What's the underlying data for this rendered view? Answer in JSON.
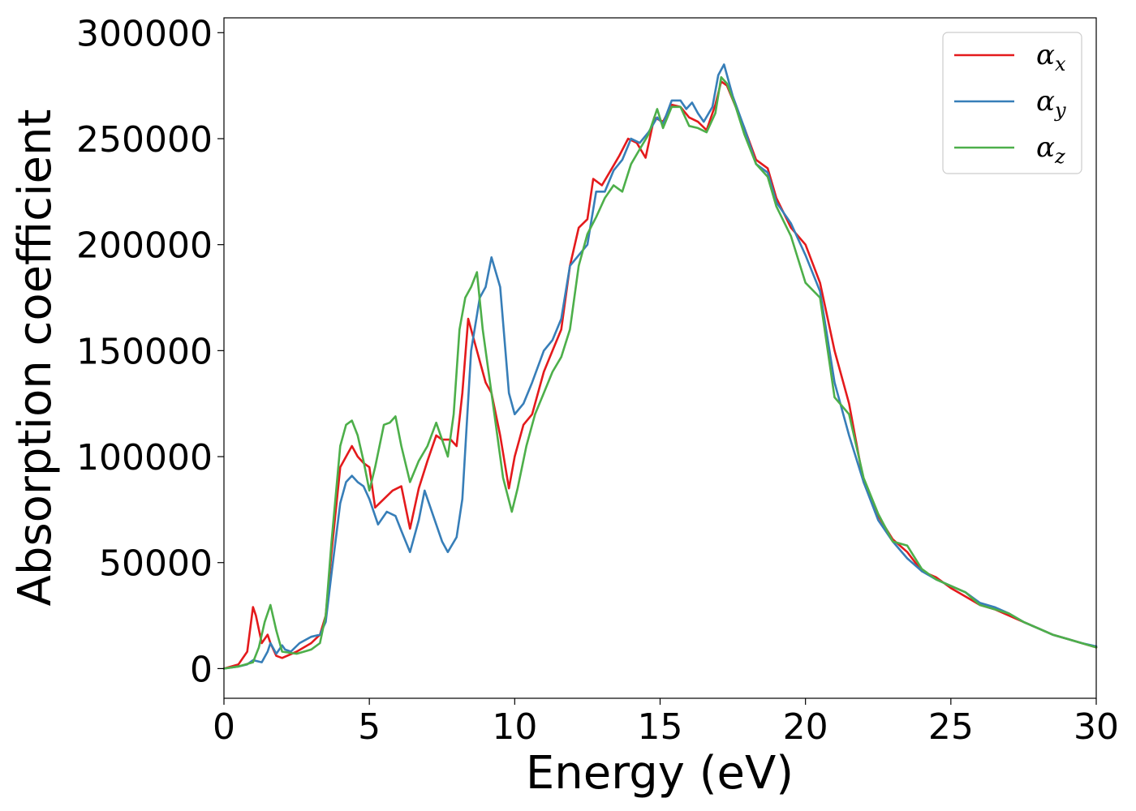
{
  "chart_data": {
    "type": "line",
    "xlabel": "Energy (eV)",
    "ylabel": "Absorption coefficient",
    "xlim": [
      0,
      30
    ],
    "ylim": [
      -14000,
      307000
    ],
    "xticks": [
      0,
      5,
      10,
      15,
      20,
      25,
      30
    ],
    "xtick_labels": [
      "0",
      "5",
      "10",
      "15",
      "20",
      "25",
      "30"
    ],
    "yticks": [
      0,
      50000,
      100000,
      150000,
      200000,
      250000,
      300000
    ],
    "ytick_labels": [
      "0",
      "50000",
      "100000",
      "150000",
      "200000",
      "250000",
      "300000"
    ],
    "grid": false,
    "legend": {
      "position": "top-right"
    },
    "series": [
      {
        "name": "α_x",
        "name_base": "α",
        "name_sub": "x",
        "color": "#e41a1c",
        "x": [
          0,
          0.5,
          0.8,
          1.0,
          1.1,
          1.3,
          1.5,
          1.6,
          1.8,
          2.0,
          2.5,
          3.0,
          3.3,
          3.5,
          3.7,
          4.0,
          4.2,
          4.4,
          4.6,
          4.8,
          5.0,
          5.2,
          5.5,
          5.8,
          6.1,
          6.4,
          6.7,
          7.0,
          7.3,
          7.5,
          7.8,
          8.0,
          8.2,
          8.4,
          8.6,
          8.8,
          9.0,
          9.2,
          9.5,
          9.8,
          10.0,
          10.3,
          10.6,
          11.0,
          11.3,
          11.6,
          11.9,
          12.2,
          12.5,
          12.7,
          13.0,
          13.3,
          13.6,
          13.9,
          14.2,
          14.5,
          14.8,
          15.1,
          15.4,
          15.7,
          16.0,
          16.3,
          16.6,
          16.9,
          17.1,
          17.3,
          17.6,
          17.9,
          18.3,
          18.7,
          19.0,
          19.5,
          20.0,
          20.5,
          21.0,
          21.5,
          22.0,
          22.5,
          23.0,
          23.5,
          24.0,
          24.5,
          25.0,
          25.5,
          26.0,
          26.5,
          27.0,
          27.5,
          28.0,
          28.5,
          29.0,
          29.5,
          30.0
        ],
        "y": [
          0,
          2000,
          8000,
          29000,
          25000,
          12000,
          16000,
          12000,
          6000,
          5000,
          8000,
          12000,
          16000,
          25000,
          55000,
          95000,
          100000,
          105000,
          100000,
          97000,
          95000,
          76000,
          80000,
          84000,
          86000,
          66000,
          85000,
          98000,
          110000,
          108000,
          108000,
          105000,
          130000,
          165000,
          155000,
          145000,
          135000,
          130000,
          110000,
          85000,
          100000,
          115000,
          120000,
          140000,
          150000,
          160000,
          190000,
          208000,
          212000,
          231000,
          228000,
          235000,
          242000,
          250000,
          248000,
          241000,
          260000,
          258000,
          266000,
          265000,
          260000,
          258000,
          254000,
          266000,
          277000,
          275000,
          265000,
          255000,
          240000,
          236000,
          222000,
          208000,
          200000,
          182000,
          150000,
          125000,
          88000,
          72000,
          61000,
          55000,
          46000,
          43000,
          38000,
          34000,
          30000,
          28000,
          25000,
          22000,
          19000,
          16000,
          14000,
          12000,
          10000
        ]
      },
      {
        "name": "α_y",
        "name_base": "α",
        "name_sub": "y",
        "color": "#377eb8",
        "x": [
          0,
          0.5,
          0.8,
          1.0,
          1.3,
          1.5,
          1.6,
          1.8,
          2.0,
          2.1,
          2.3,
          2.6,
          3.0,
          3.3,
          3.5,
          3.7,
          4.0,
          4.2,
          4.4,
          4.6,
          4.8,
          5.0,
          5.3,
          5.6,
          5.9,
          6.1,
          6.4,
          6.7,
          6.9,
          7.2,
          7.5,
          7.7,
          8.0,
          8.2,
          8.5,
          8.8,
          9.0,
          9.2,
          9.5,
          9.8,
          10.0,
          10.3,
          10.6,
          11.0,
          11.3,
          11.6,
          11.9,
          12.2,
          12.5,
          12.8,
          13.1,
          13.4,
          13.7,
          14.0,
          14.3,
          14.6,
          14.9,
          15.1,
          15.4,
          15.7,
          15.9,
          16.1,
          16.3,
          16.5,
          16.8,
          17.0,
          17.2,
          17.5,
          17.9,
          18.3,
          18.7,
          19.0,
          19.5,
          20.0,
          20.5,
          21.0,
          21.5,
          22.0,
          22.5,
          23.0,
          23.5,
          24.0,
          24.5,
          25.0,
          25.5,
          26.0,
          26.5,
          27.0,
          27.5,
          28.0,
          28.5,
          29.0,
          29.5,
          30.0
        ],
        "y": [
          0,
          1000,
          2000,
          4000,
          3000,
          8000,
          12000,
          7000,
          11000,
          9000,
          8000,
          12000,
          15000,
          16000,
          22000,
          45000,
          78000,
          88000,
          91000,
          88000,
          86000,
          80000,
          68000,
          74000,
          72000,
          65000,
          55000,
          70000,
          84000,
          72000,
          60000,
          55000,
          62000,
          80000,
          150000,
          175000,
          180000,
          194000,
          180000,
          130000,
          120000,
          125000,
          135000,
          150000,
          155000,
          165000,
          190000,
          195000,
          200000,
          225000,
          225000,
          235000,
          240000,
          250000,
          248000,
          253000,
          260000,
          257000,
          268000,
          268000,
          264000,
          267000,
          262000,
          258000,
          265000,
          280000,
          285000,
          270000,
          255000,
          238000,
          234000,
          220000,
          210000,
          195000,
          178000,
          135000,
          110000,
          88000,
          70000,
          60000,
          52000,
          46000,
          42000,
          39000,
          36000,
          31000,
          29000,
          26000,
          22000,
          19000,
          16000,
          14000,
          12000,
          10500
        ]
      },
      {
        "name": "α_z",
        "name_base": "α",
        "name_sub": "z",
        "color": "#4daf4a",
        "x": [
          0,
          0.5,
          1.0,
          1.2,
          1.4,
          1.6,
          1.8,
          2.0,
          2.5,
          3.0,
          3.3,
          3.5,
          3.7,
          4.0,
          4.2,
          4.4,
          4.6,
          4.8,
          5.0,
          5.2,
          5.5,
          5.7,
          5.9,
          6.1,
          6.4,
          6.7,
          7.0,
          7.3,
          7.5,
          7.7,
          7.9,
          8.1,
          8.3,
          8.5,
          8.7,
          8.9,
          9.1,
          9.3,
          9.6,
          9.9,
          10.1,
          10.4,
          10.7,
          11.0,
          11.3,
          11.6,
          11.9,
          12.2,
          12.5,
          12.8,
          13.1,
          13.4,
          13.7,
          14.0,
          14.3,
          14.6,
          14.9,
          15.1,
          15.4,
          15.7,
          16.0,
          16.3,
          16.6,
          16.9,
          17.1,
          17.3,
          17.6,
          17.9,
          18.3,
          18.7,
          19.0,
          19.5,
          20.0,
          20.5,
          21.0,
          21.5,
          22.0,
          22.5,
          23.0,
          23.5,
          24.0,
          24.5,
          25.0,
          25.5,
          26.0,
          26.5,
          27.0,
          27.5,
          28.0,
          28.5,
          29.0,
          29.5,
          30.0
        ],
        "y": [
          0,
          1000,
          3000,
          10000,
          22000,
          30000,
          18000,
          8000,
          7000,
          9000,
          12000,
          25000,
          60000,
          105000,
          115000,
          117000,
          110000,
          98000,
          84000,
          95000,
          115000,
          116000,
          119000,
          105000,
          88000,
          98000,
          105000,
          116000,
          108000,
          100000,
          120000,
          160000,
          175000,
          180000,
          187000,
          160000,
          140000,
          120000,
          90000,
          74000,
          85000,
          105000,
          120000,
          130000,
          140000,
          147000,
          160000,
          190000,
          205000,
          213000,
          222000,
          228000,
          225000,
          238000,
          245000,
          252000,
          264000,
          255000,
          265000,
          265000,
          256000,
          255000,
          253000,
          262000,
          279000,
          276000,
          265000,
          252000,
          238000,
          232000,
          218000,
          204000,
          182000,
          175000,
          128000,
          120000,
          90000,
          73000,
          60000,
          58000,
          47000,
          42000,
          39000,
          36000,
          30000,
          28000,
          26000,
          22000,
          19000,
          16000,
          14000,
          12000,
          10000
        ]
      }
    ]
  }
}
